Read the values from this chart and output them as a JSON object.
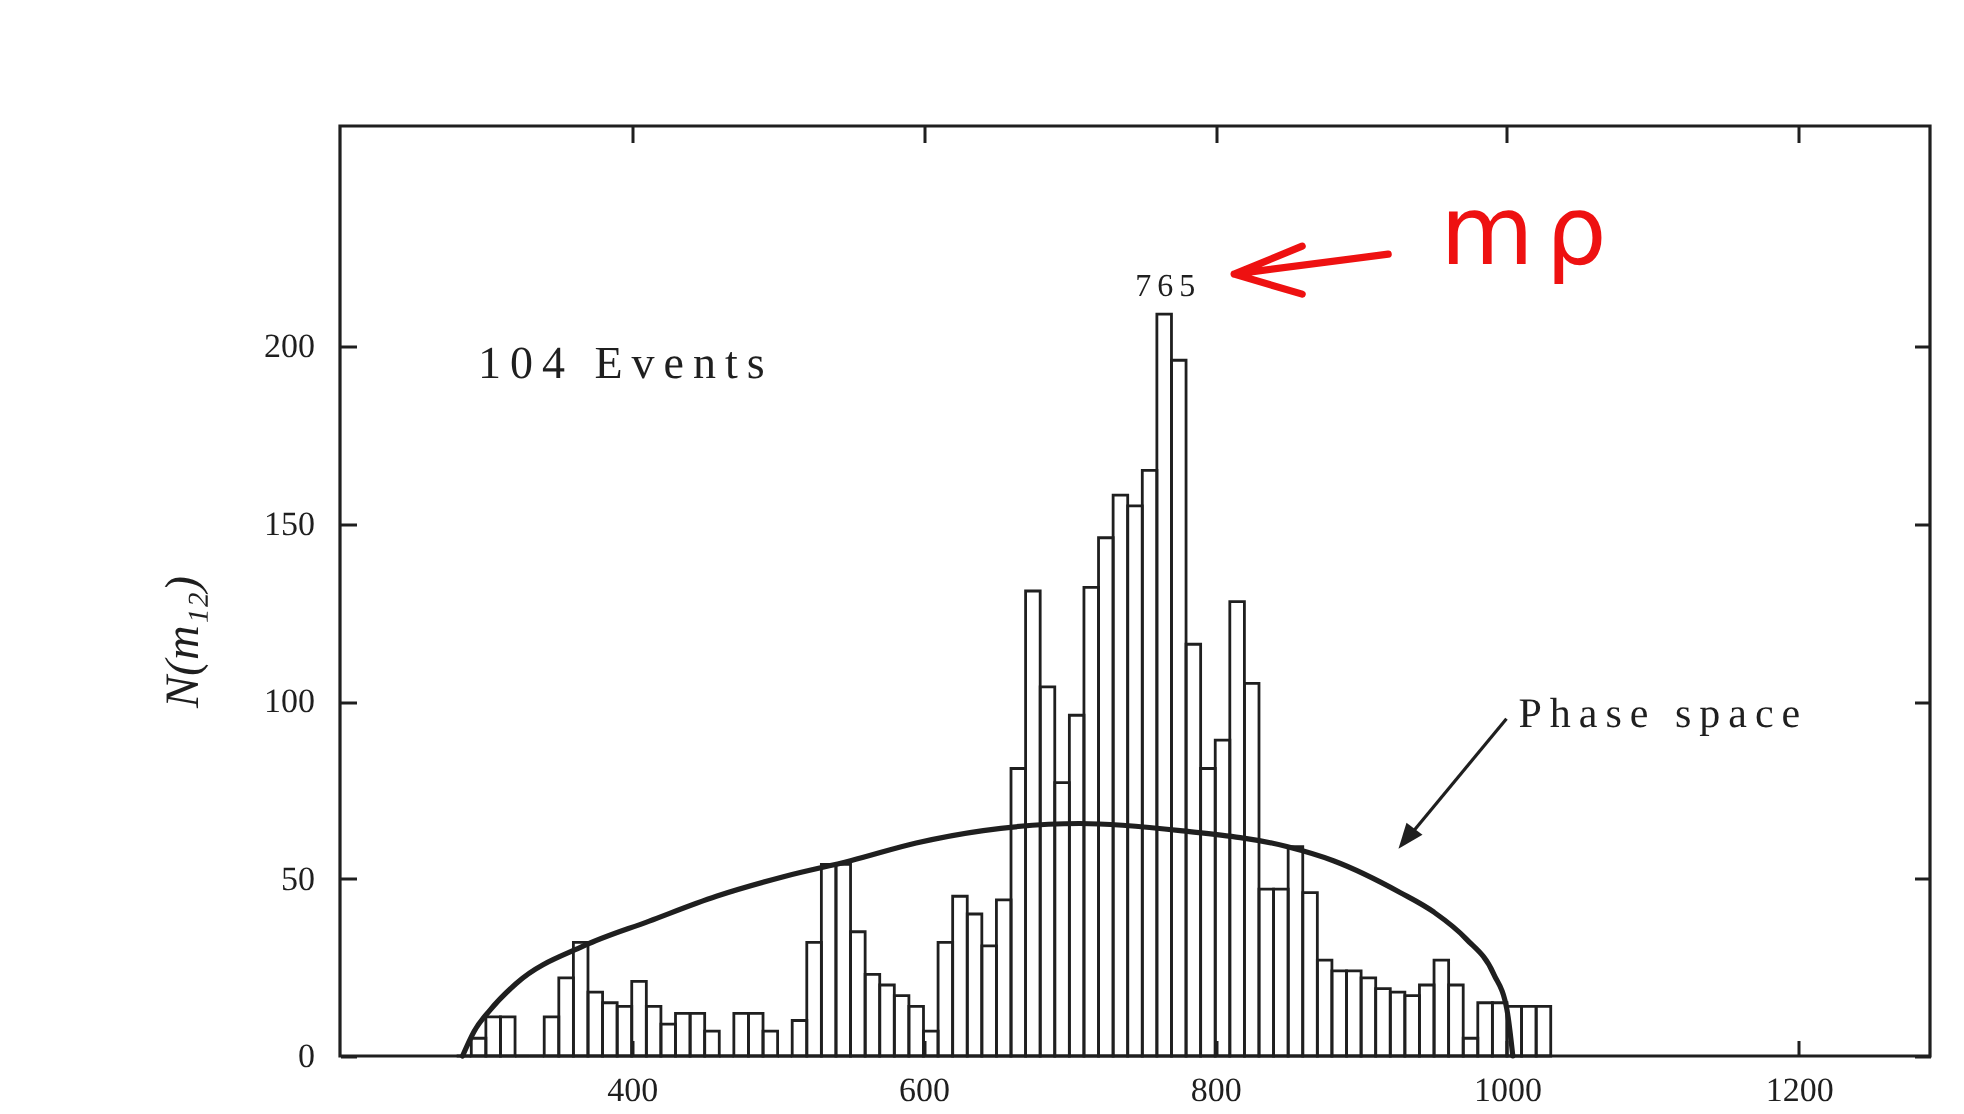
{
  "chart_data": {
    "type": "histogram",
    "ylabel": "N(m₁₂)",
    "bins": [
      280,
      290,
      300,
      310,
      320,
      330,
      340,
      350,
      360,
      370,
      380,
      390,
      400,
      410,
      420,
      430,
      440,
      450,
      460,
      470,
      480,
      490,
      500,
      510,
      520,
      530,
      540,
      550,
      560,
      570,
      580,
      590,
      600,
      610,
      620,
      630,
      640,
      650,
      660,
      670,
      680,
      690,
      700,
      710,
      720,
      730,
      740,
      750,
      760,
      770,
      780,
      790,
      800,
      810,
      820,
      830,
      840,
      850,
      860,
      870,
      880,
      890,
      900,
      910,
      920,
      930,
      940,
      950,
      960,
      970,
      980,
      990,
      1000,
      1010,
      1020,
      1030
    ],
    "series": [
      {
        "color": "#1f1f1f",
        "values": [
          0,
          5,
          11,
          11,
          0,
          0,
          11,
          22,
          32,
          18,
          15,
          14,
          21,
          14,
          9,
          12,
          12,
          7,
          0,
          12,
          12,
          7,
          0,
          10,
          32,
          54,
          54,
          35,
          23,
          20,
          17,
          14,
          7,
          32,
          45,
          40,
          31,
          44,
          81,
          131,
          104,
          77,
          96,
          132,
          146,
          158,
          155,
          165,
          209,
          196,
          116,
          81,
          89,
          128,
          105,
          47,
          47,
          59,
          46,
          27,
          24,
          24,
          22,
          19,
          18,
          17,
          20,
          27,
          20,
          5,
          15,
          15,
          14,
          14,
          14
        ]
      },
      {
        "type": "line",
        "name": "Phase space",
        "color": "#1f1f1f",
        "x": [
          284,
          292,
          303,
          321,
          367,
          412,
          458,
          504,
          550,
          595,
          641,
          707,
          776,
          849,
          881,
          927,
          950,
          972,
          991,
          1000,
          1004
        ],
        "values": [
          0,
          7,
          13,
          20.5,
          31,
          38,
          45,
          50.5,
          55,
          60,
          63.5,
          65.5,
          63.5,
          59,
          55,
          46,
          40.5,
          33,
          23,
          13,
          0
        ]
      }
    ],
    "xlim": [
      200,
      1290
    ],
    "xticks": [
      400,
      600,
      800,
      1000,
      1200
    ],
    "ylim": [
      0,
      262
    ],
    "yticks": [
      0,
      50,
      100,
      150,
      200
    ],
    "annotations": [
      "104 Events",
      {
        "text": "765",
        "x": 765,
        "y": 209
      },
      "mρ"
    ]
  }
}
